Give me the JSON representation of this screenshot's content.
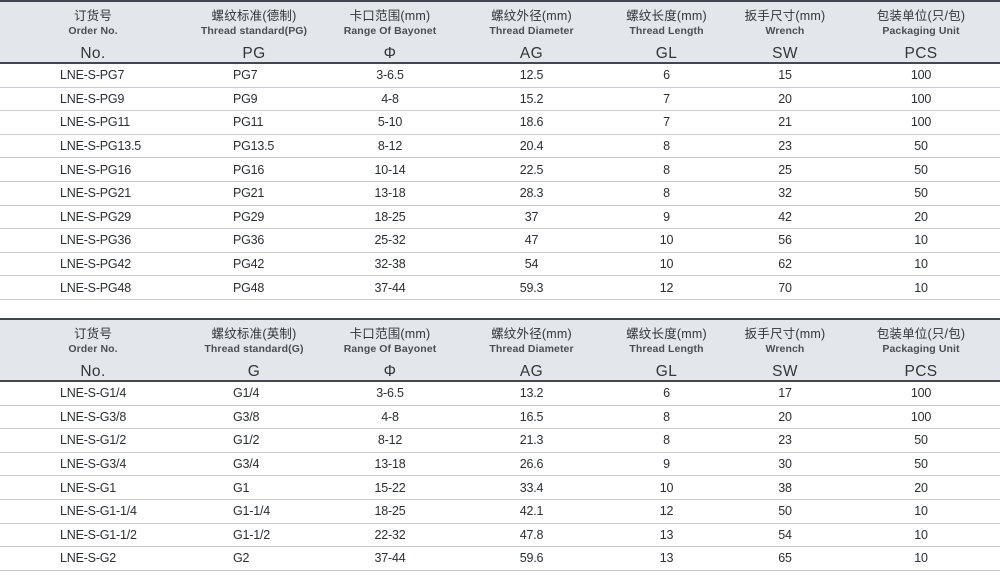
{
  "colors": {
    "header_bg": "#e3e6ea",
    "border_dark": "#43474d",
    "row_line": "#c9ccd0",
    "text_dark": "#32363b",
    "text_sub": "#4b4f55",
    "text_data": "#2b2e33",
    "page_bg": "#ffffff"
  },
  "tables": [
    {
      "name": "pg-thread-table",
      "columns": [
        {
          "key": "order-no",
          "zh": "订货号",
          "en": "Order No.",
          "code": "No."
        },
        {
          "key": "thread-standard",
          "zh": "螺纹标准(德制)",
          "en": "Thread standard(PG)",
          "code": "PG"
        },
        {
          "key": "bayonet-range",
          "zh": "卡口范围(mm)",
          "en": "Range Of Bayonet",
          "code": "Φ"
        },
        {
          "key": "thread-diameter",
          "zh": "螺纹外径(mm)",
          "en": "Thread Diameter",
          "code": "AG"
        },
        {
          "key": "thread-length",
          "zh": "螺纹长度(mm)",
          "en": "Thread Length",
          "code": "GL"
        },
        {
          "key": "wrench-size",
          "zh": "扳手尺寸(mm)",
          "en": "Wrench",
          "code": "SW"
        },
        {
          "key": "packaging-unit",
          "zh": "包装单位(只/包)",
          "en": "Packaging Unit",
          "code": "PCS"
        }
      ],
      "rows": [
        [
          "LNE-S-PG7",
          "PG7",
          "3-6.5",
          "12.5",
          "6",
          "15",
          "100"
        ],
        [
          "LNE-S-PG9",
          "PG9",
          "4-8",
          "15.2",
          "7",
          "20",
          "100"
        ],
        [
          "LNE-S-PG11",
          "PG11",
          "5-10",
          "18.6",
          "7",
          "21",
          "100"
        ],
        [
          "LNE-S-PG13.5",
          "PG13.5",
          "8-12",
          "20.4",
          "8",
          "23",
          "50"
        ],
        [
          "LNE-S-PG16",
          "PG16",
          "10-14",
          "22.5",
          "8",
          "25",
          "50"
        ],
        [
          "LNE-S-PG21",
          "PG21",
          "13-18",
          "28.3",
          "8",
          "32",
          "50"
        ],
        [
          "LNE-S-PG29",
          "PG29",
          "18-25",
          "37",
          "9",
          "42",
          "20"
        ],
        [
          "LNE-S-PG36",
          "PG36",
          "25-32",
          "47",
          "10",
          "56",
          "10"
        ],
        [
          "LNE-S-PG42",
          "PG42",
          "32-38",
          "54",
          "10",
          "62",
          "10"
        ],
        [
          "LNE-S-PG48",
          "PG48",
          "37-44",
          "59.3",
          "12",
          "70",
          "10"
        ]
      ]
    },
    {
      "name": "g-thread-table",
      "columns": [
        {
          "key": "order-no",
          "zh": "订货号",
          "en": "Order No.",
          "code": "No."
        },
        {
          "key": "thread-standard",
          "zh": "螺纹标准(英制)",
          "en": "Thread standard(G)",
          "code": "G"
        },
        {
          "key": "bayonet-range",
          "zh": "卡口范围(mm)",
          "en": "Range Of Bayonet",
          "code": "Φ"
        },
        {
          "key": "thread-diameter",
          "zh": "螺纹外径(mm)",
          "en": "Thread Diameter",
          "code": "AG"
        },
        {
          "key": "thread-length",
          "zh": "螺纹长度(mm)",
          "en": "Thread Length",
          "code": "GL"
        },
        {
          "key": "wrench-size",
          "zh": "扳手尺寸(mm)",
          "en": "Wrench",
          "code": "SW"
        },
        {
          "key": "packaging-unit",
          "zh": "包装单位(只/包)",
          "en": "Packaging Unit",
          "code": "PCS"
        }
      ],
      "rows": [
        [
          "LNE-S-G1/4",
          "G1/4",
          "3-6.5",
          "13.2",
          "6",
          "17",
          "100"
        ],
        [
          "LNE-S-G3/8",
          "G3/8",
          "4-8",
          "16.5",
          "8",
          "20",
          "100"
        ],
        [
          "LNE-S-G1/2",
          "G1/2",
          "8-12",
          "21.3",
          "8",
          "23",
          "50"
        ],
        [
          "LNE-S-G3/4",
          "G3/4",
          "13-18",
          "26.6",
          "9",
          "30",
          "50"
        ],
        [
          "LNE-S-G1",
          "G1",
          "15-22",
          "33.4",
          "10",
          "38",
          "20"
        ],
        [
          "LNE-S-G1-1/4",
          "G1-1/4",
          "18-25",
          "42.1",
          "12",
          "50",
          "10"
        ],
        [
          "LNE-S-G1-1/2",
          "G1-1/2",
          "22-32",
          "47.8",
          "13",
          "54",
          "10"
        ],
        [
          "LNE-S-G2",
          "G2",
          "37-44",
          "59.6",
          "13",
          "65",
          "10"
        ]
      ]
    }
  ]
}
